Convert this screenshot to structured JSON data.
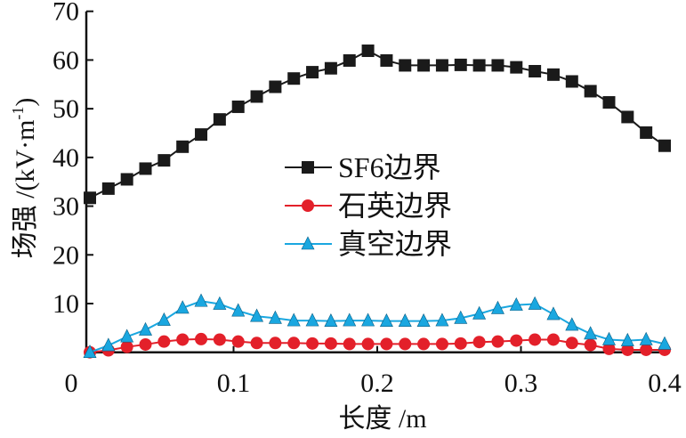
{
  "chart_data": {
    "type": "line",
    "title": "",
    "xlabel": "长度 /m",
    "ylabel": "场强 /(kV·m",
    "ylabel_sup": "-1",
    "ylabel_close": ")",
    "xlim": [
      0,
      0.4
    ],
    "ylim": [
      0,
      70
    ],
    "xticks": [
      "0",
      "0.1",
      "0.2",
      "0.3",
      "0.4"
    ],
    "xtick_values": [
      0,
      0.1,
      0.2,
      0.3,
      0.4
    ],
    "yticks": [
      "10",
      "20",
      "30",
      "40",
      "50",
      "60",
      "70"
    ],
    "ytick_values": [
      10,
      20,
      30,
      40,
      50,
      60,
      70
    ],
    "grid": false,
    "legend_position": "center",
    "x_points": 32,
    "series": [
      {
        "name": "SF6边界",
        "color": "#1a1a1a",
        "marker": "square",
        "values": [
          31.7,
          33.6,
          35.5,
          37.7,
          39.4,
          42.2,
          44.7,
          47.8,
          50.4,
          52.5,
          54.5,
          56.2,
          57.5,
          58.3,
          59.9,
          61.9,
          59.9,
          58.9,
          58.9,
          58.9,
          59.0,
          58.9,
          58.9,
          58.5,
          57.7,
          57.0,
          55.6,
          53.6,
          51.3,
          48.3,
          45.1,
          42.4
        ]
      },
      {
        "name": "石英边界",
        "color": "#e3202a",
        "marker": "circle",
        "values": [
          0.0,
          0.4,
          1.1,
          1.6,
          2.2,
          2.6,
          2.7,
          2.6,
          2.2,
          1.9,
          1.9,
          1.9,
          1.8,
          1.8,
          1.7,
          1.7,
          1.7,
          1.7,
          1.7,
          1.7,
          1.8,
          2.1,
          2.2,
          2.4,
          2.6,
          2.6,
          1.9,
          1.5,
          0.7,
          0.5,
          0.5,
          0.5
        ]
      },
      {
        "name": "真空边界",
        "color": "#1aa7e0",
        "marker": "triangle",
        "values": [
          0.0,
          1.4,
          3.2,
          4.6,
          6.6,
          9.1,
          10.5,
          9.9,
          8.5,
          7.4,
          7.0,
          6.5,
          6.5,
          6.4,
          6.5,
          6.5,
          6.4,
          6.4,
          6.4,
          6.5,
          7.0,
          7.9,
          9.0,
          9.7,
          9.9,
          7.8,
          5.6,
          3.8,
          2.6,
          2.4,
          2.6,
          1.7
        ]
      }
    ]
  }
}
